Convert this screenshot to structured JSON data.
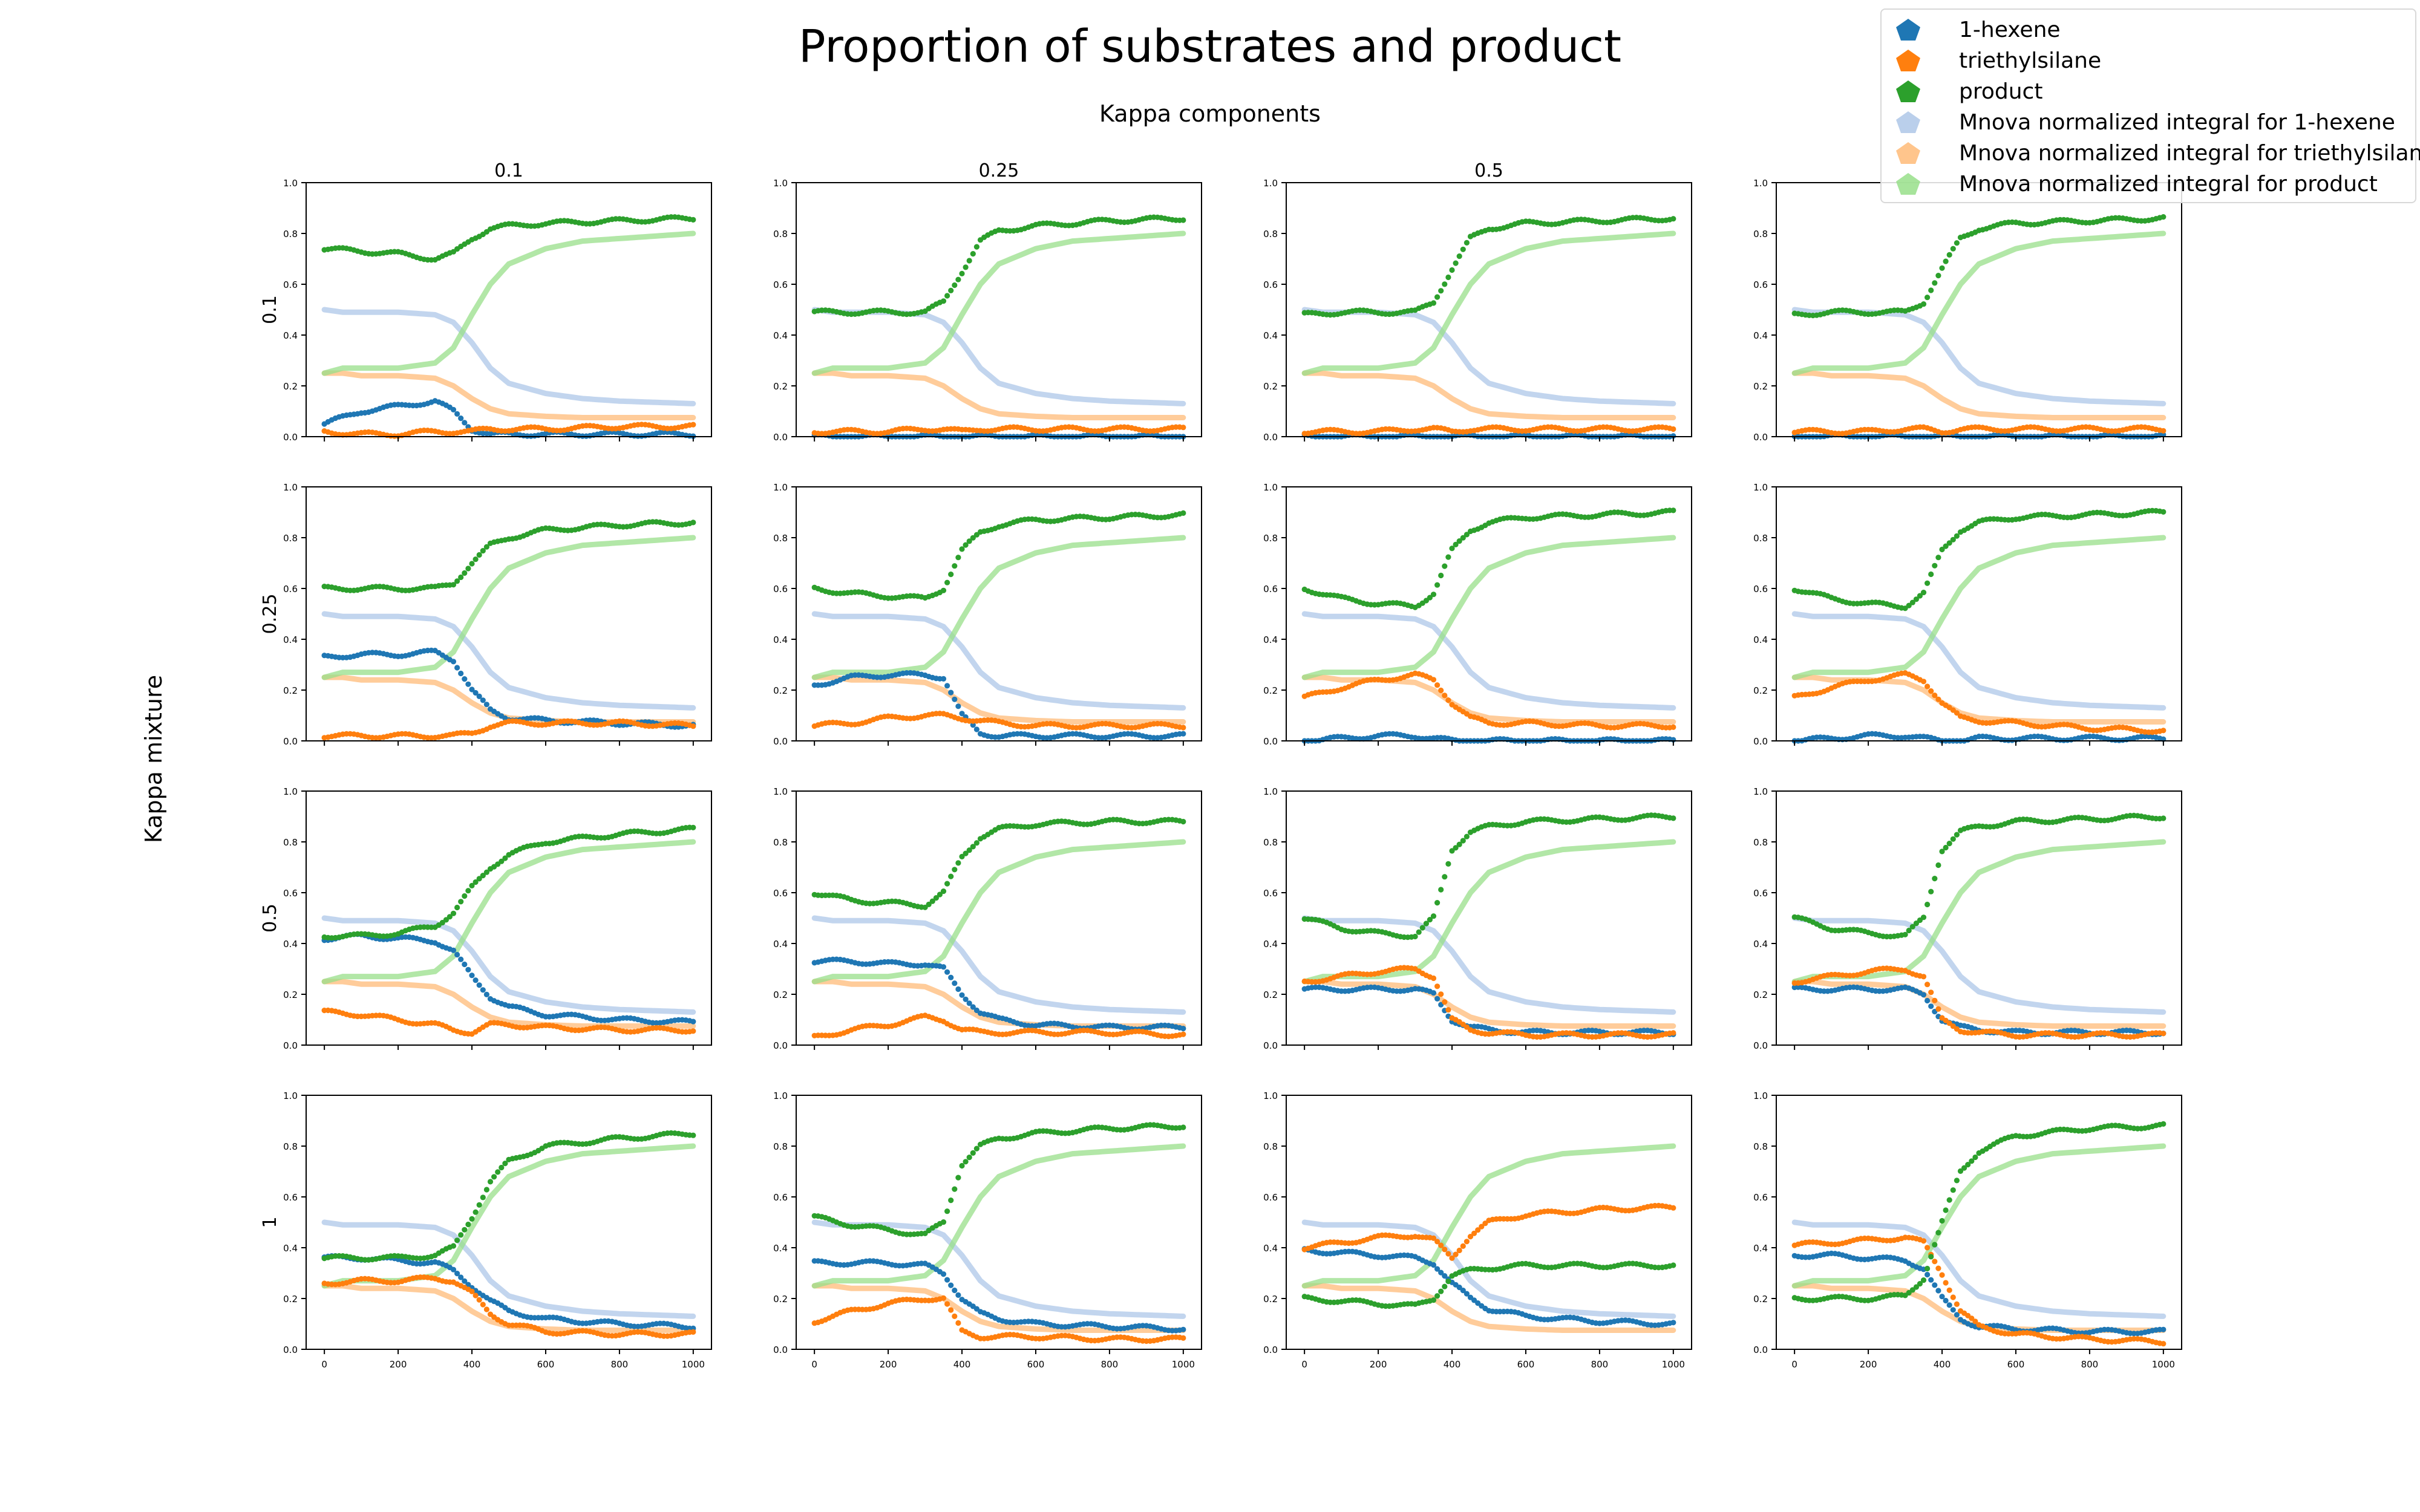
{
  "figure": {
    "title": "Proportion of substrates and product",
    "column_title": "Kappa components",
    "row_title": "Kappa mixture"
  },
  "legend": [
    {
      "label": "1-hexene",
      "color": "#1f77b4",
      "style": "dots"
    },
    {
      "label": "triethylsilane",
      "color": "#ff7f0e",
      "style": "dots"
    },
    {
      "label": "product",
      "color": "#2ca02c",
      "style": "dots"
    },
    {
      "label": "Mnova normalized integral for 1-hexene",
      "color": "#1f77b4",
      "style": "faded-line"
    },
    {
      "label": "Mnova normalized integral for triethylsilane",
      "color": "#ff7f0e",
      "style": "faded-line"
    },
    {
      "label": "Mnova normalized integral for product",
      "color": "#2ca02c",
      "style": "faded-line"
    }
  ],
  "chart_data": {
    "type": "scatter",
    "layout": "4x4 small multiples",
    "column_values": [
      "0.1",
      "0.25",
      "0.5",
      ""
    ],
    "row_values": [
      "0.1",
      "0.25",
      "0.5",
      "1"
    ],
    "xlim": [
      0,
      1000
    ],
    "ylim": [
      0,
      1
    ],
    "x_ticks": [
      0,
      200,
      400,
      600,
      800,
      1000
    ],
    "y_ticks": [
      0.0,
      0.2,
      0.4,
      0.6,
      0.8,
      1.0
    ],
    "reference_series": {
      "x": [
        0,
        50,
        100,
        200,
        300,
        350,
        400,
        450,
        500,
        600,
        700,
        800,
        900,
        1000
      ],
      "1-hexene": [
        0.5,
        0.49,
        0.49,
        0.49,
        0.48,
        0.45,
        0.37,
        0.27,
        0.21,
        0.17,
        0.15,
        0.14,
        0.135,
        0.13
      ],
      "triethylsilane": [
        0.25,
        0.25,
        0.24,
        0.24,
        0.23,
        0.2,
        0.15,
        0.11,
        0.09,
        0.08,
        0.075,
        0.075,
        0.075,
        0.075
      ],
      "product": [
        0.25,
        0.27,
        0.27,
        0.27,
        0.29,
        0.35,
        0.48,
        0.6,
        0.68,
        0.74,
        0.77,
        0.78,
        0.79,
        0.8
      ]
    },
    "panels": [
      {
        "row": "0.1",
        "col": "0.1",
        "x": [
          0,
          100,
          200,
          300,
          350,
          400,
          450,
          500,
          600,
          800,
          1000
        ],
        "1-hexene": [
          0.05,
          0.1,
          0.12,
          0.14,
          0.1,
          0.03,
          0.01,
          0.01,
          0.01,
          0.01,
          0.01
        ],
        "triethylsilane": [
          0.02,
          0.01,
          0.01,
          0.02,
          0.02,
          0.02,
          0.03,
          0.03,
          0.03,
          0.04,
          0.04
        ],
        "product": [
          0.74,
          0.73,
          0.72,
          0.7,
          0.72,
          0.78,
          0.82,
          0.83,
          0.84,
          0.85,
          0.86
        ]
      },
      {
        "row": "0.1",
        "col": "0.25",
        "x": [
          0,
          100,
          200,
          300,
          350,
          400,
          450,
          500,
          600,
          800,
          1000
        ],
        "1-hexene": [
          0.0,
          0.0,
          0.0,
          0.0,
          0.0,
          0.0,
          0.0,
          0.0,
          0.0,
          0.0,
          0.0
        ],
        "triethylsilane": [
          0.02,
          0.02,
          0.02,
          0.03,
          0.03,
          0.02,
          0.03,
          0.03,
          0.03,
          0.03,
          0.03
        ],
        "product": [
          0.49,
          0.49,
          0.49,
          0.49,
          0.53,
          0.65,
          0.77,
          0.81,
          0.83,
          0.85,
          0.86
        ]
      },
      {
        "row": "0.1",
        "col": "0.5",
        "x": [
          0,
          100,
          200,
          300,
          350,
          400,
          450,
          500,
          600,
          800,
          1000
        ],
        "1-hexene": [
          0.0,
          0.0,
          0.0,
          0.0,
          0.0,
          0.0,
          0.0,
          0.0,
          0.0,
          0.0,
          0.0
        ],
        "triethylsilane": [
          0.02,
          0.02,
          0.02,
          0.03,
          0.03,
          0.02,
          0.03,
          0.03,
          0.03,
          0.03,
          0.03
        ],
        "product": [
          0.48,
          0.49,
          0.49,
          0.49,
          0.53,
          0.66,
          0.78,
          0.82,
          0.84,
          0.85,
          0.86
        ]
      },
      {
        "row": "0.1",
        "col": "",
        "x": [
          0,
          100,
          200,
          300,
          350,
          400,
          450,
          500,
          600,
          800,
          1000
        ],
        "1-hexene": [
          0.0,
          0.0,
          0.0,
          0.0,
          0.0,
          0.0,
          0.0,
          0.0,
          0.0,
          0.0,
          0.0
        ],
        "triethylsilane": [
          0.02,
          0.02,
          0.02,
          0.03,
          0.03,
          0.02,
          0.03,
          0.03,
          0.03,
          0.03,
          0.03
        ],
        "product": [
          0.48,
          0.49,
          0.49,
          0.49,
          0.53,
          0.66,
          0.78,
          0.82,
          0.84,
          0.85,
          0.86
        ]
      },
      {
        "row": "0.25",
        "col": "0.1",
        "x": [
          0,
          100,
          200,
          300,
          350,
          400,
          450,
          500,
          600,
          800,
          1000
        ],
        "1-hexene": [
          0.33,
          0.34,
          0.34,
          0.35,
          0.32,
          0.2,
          0.12,
          0.09,
          0.08,
          0.07,
          0.06
        ],
        "triethylsilane": [
          0.02,
          0.02,
          0.02,
          0.02,
          0.02,
          0.03,
          0.06,
          0.07,
          0.07,
          0.07,
          0.06
        ],
        "product": [
          0.6,
          0.6,
          0.6,
          0.6,
          0.62,
          0.7,
          0.77,
          0.8,
          0.83,
          0.85,
          0.86
        ]
      },
      {
        "row": "0.25",
        "col": "0.25",
        "x": [
          0,
          100,
          200,
          300,
          350,
          400,
          450,
          500,
          600,
          800,
          1000
        ],
        "1-hexene": [
          0.22,
          0.25,
          0.26,
          0.26,
          0.25,
          0.1,
          0.03,
          0.02,
          0.02,
          0.02,
          0.02
        ],
        "triethylsilane": [
          0.06,
          0.07,
          0.09,
          0.1,
          0.1,
          0.09,
          0.08,
          0.07,
          0.06,
          0.06,
          0.06
        ],
        "product": [
          0.6,
          0.58,
          0.57,
          0.56,
          0.6,
          0.75,
          0.82,
          0.85,
          0.87,
          0.88,
          0.89
        ]
      },
      {
        "row": "0.25",
        "col": "0.5",
        "x": [
          0,
          100,
          200,
          300,
          350,
          400,
          450,
          500,
          600,
          800,
          1000
        ],
        "1-hexene": [
          0.0,
          0.01,
          0.02,
          0.02,
          0.01,
          0.0,
          0.0,
          0.0,
          0.0,
          0.0,
          0.0
        ],
        "triethylsilane": [
          0.17,
          0.21,
          0.24,
          0.26,
          0.24,
          0.15,
          0.09,
          0.07,
          0.07,
          0.06,
          0.06
        ],
        "product": [
          0.6,
          0.56,
          0.54,
          0.53,
          0.58,
          0.75,
          0.83,
          0.86,
          0.88,
          0.89,
          0.9
        ]
      },
      {
        "row": "0.25",
        "col": "",
        "x": [
          0,
          100,
          200,
          300,
          350,
          400,
          450,
          500,
          600,
          800,
          1000
        ],
        "1-hexene": [
          0.0,
          0.01,
          0.02,
          0.02,
          0.01,
          0.0,
          0.0,
          0.01,
          0.01,
          0.01,
          0.01
        ],
        "triethylsilane": [
          0.17,
          0.21,
          0.24,
          0.26,
          0.24,
          0.15,
          0.09,
          0.08,
          0.07,
          0.05,
          0.04
        ],
        "product": [
          0.6,
          0.56,
          0.54,
          0.53,
          0.58,
          0.75,
          0.83,
          0.86,
          0.88,
          0.89,
          0.9
        ]
      },
      {
        "row": "0.5",
        "col": "0.1",
        "x": [
          0,
          100,
          200,
          300,
          350,
          400,
          450,
          500,
          600,
          800,
          1000
        ],
        "1-hexene": [
          0.42,
          0.43,
          0.42,
          0.41,
          0.37,
          0.27,
          0.19,
          0.15,
          0.12,
          0.1,
          0.09
        ],
        "triethylsilane": [
          0.13,
          0.12,
          0.1,
          0.08,
          0.06,
          0.05,
          0.08,
          0.08,
          0.07,
          0.06,
          0.06
        ],
        "product": [
          0.43,
          0.43,
          0.44,
          0.47,
          0.52,
          0.62,
          0.7,
          0.75,
          0.8,
          0.83,
          0.85
        ]
      },
      {
        "row": "0.5",
        "col": "0.25",
        "x": [
          0,
          100,
          200,
          300,
          350,
          400,
          450,
          500,
          600,
          800,
          1000
        ],
        "1-hexene": [
          0.33,
          0.33,
          0.32,
          0.32,
          0.3,
          0.2,
          0.13,
          0.1,
          0.08,
          0.07,
          0.07
        ],
        "triethylsilane": [
          0.03,
          0.06,
          0.08,
          0.11,
          0.1,
          0.06,
          0.05,
          0.05,
          0.05,
          0.05,
          0.04
        ],
        "product": [
          0.6,
          0.57,
          0.56,
          0.55,
          0.6,
          0.74,
          0.82,
          0.85,
          0.87,
          0.88,
          0.88
        ]
      },
      {
        "row": "0.5",
        "col": "0.5",
        "x": [
          0,
          100,
          200,
          300,
          350,
          400,
          450,
          500,
          600,
          800,
          1000
        ],
        "1-hexene": [
          0.22,
          0.22,
          0.22,
          0.22,
          0.2,
          0.1,
          0.07,
          0.06,
          0.05,
          0.05,
          0.05
        ],
        "triethylsilane": [
          0.25,
          0.27,
          0.29,
          0.3,
          0.27,
          0.1,
          0.06,
          0.05,
          0.04,
          0.04,
          0.04
        ],
        "product": [
          0.5,
          0.46,
          0.44,
          0.43,
          0.5,
          0.77,
          0.84,
          0.86,
          0.88,
          0.89,
          0.9
        ]
      },
      {
        "row": "0.5",
        "col": "",
        "x": [
          0,
          100,
          200,
          300,
          350,
          400,
          450,
          500,
          600,
          800,
          1000
        ],
        "1-hexene": [
          0.22,
          0.22,
          0.22,
          0.22,
          0.2,
          0.1,
          0.07,
          0.06,
          0.05,
          0.05,
          0.05
        ],
        "triethylsilane": [
          0.25,
          0.27,
          0.29,
          0.3,
          0.27,
          0.1,
          0.06,
          0.05,
          0.04,
          0.04,
          0.04
        ],
        "product": [
          0.5,
          0.46,
          0.44,
          0.43,
          0.5,
          0.77,
          0.84,
          0.86,
          0.88,
          0.89,
          0.9
        ]
      },
      {
        "row": "1",
        "col": "0.1",
        "x": [
          0,
          100,
          200,
          300,
          350,
          400,
          450,
          500,
          600,
          800,
          1000
        ],
        "1-hexene": [
          0.36,
          0.36,
          0.35,
          0.34,
          0.31,
          0.25,
          0.19,
          0.15,
          0.12,
          0.1,
          0.09
        ],
        "triethylsilane": [
          0.26,
          0.27,
          0.27,
          0.28,
          0.27,
          0.22,
          0.14,
          0.1,
          0.07,
          0.06,
          0.06
        ],
        "product": [
          0.36,
          0.36,
          0.36,
          0.37,
          0.4,
          0.52,
          0.66,
          0.74,
          0.8,
          0.83,
          0.85
        ]
      },
      {
        "row": "1",
        "col": "0.25",
        "x": [
          0,
          100,
          200,
          300,
          350,
          400,
          450,
          500,
          600,
          800,
          1000
        ],
        "1-hexene": [
          0.34,
          0.34,
          0.34,
          0.33,
          0.3,
          0.2,
          0.14,
          0.12,
          0.1,
          0.09,
          0.08
        ],
        "triethylsilane": [
          0.11,
          0.15,
          0.18,
          0.2,
          0.2,
          0.07,
          0.05,
          0.05,
          0.05,
          0.04,
          0.04
        ],
        "product": [
          0.52,
          0.49,
          0.47,
          0.45,
          0.5,
          0.73,
          0.8,
          0.83,
          0.85,
          0.87,
          0.88
        ]
      },
      {
        "row": "1",
        "col": "0.5",
        "x": [
          0,
          100,
          200,
          300,
          350,
          400,
          450,
          500,
          600,
          800,
          1000
        ],
        "1-hexene": [
          0.39,
          0.38,
          0.37,
          0.36,
          0.34,
          0.26,
          0.2,
          0.16,
          0.13,
          0.11,
          0.1
        ],
        "triethylsilane": [
          0.4,
          0.42,
          0.44,
          0.45,
          0.43,
          0.36,
          0.45,
          0.5,
          0.53,
          0.55,
          0.56
        ],
        "product": [
          0.2,
          0.19,
          0.18,
          0.17,
          0.2,
          0.29,
          0.31,
          0.32,
          0.33,
          0.33,
          0.33
        ]
      },
      {
        "row": "1",
        "col": "",
        "x": [
          0,
          100,
          200,
          300,
          350,
          400,
          450,
          500,
          600,
          800,
          1000
        ],
        "1-hexene": [
          0.37,
          0.37,
          0.36,
          0.35,
          0.32,
          0.2,
          0.12,
          0.09,
          0.08,
          0.07,
          0.07
        ],
        "triethylsilane": [
          0.41,
          0.42,
          0.43,
          0.44,
          0.42,
          0.3,
          0.15,
          0.09,
          0.06,
          0.04,
          0.03
        ],
        "product": [
          0.2,
          0.2,
          0.2,
          0.21,
          0.28,
          0.5,
          0.7,
          0.78,
          0.84,
          0.87,
          0.88
        ]
      }
    ]
  }
}
